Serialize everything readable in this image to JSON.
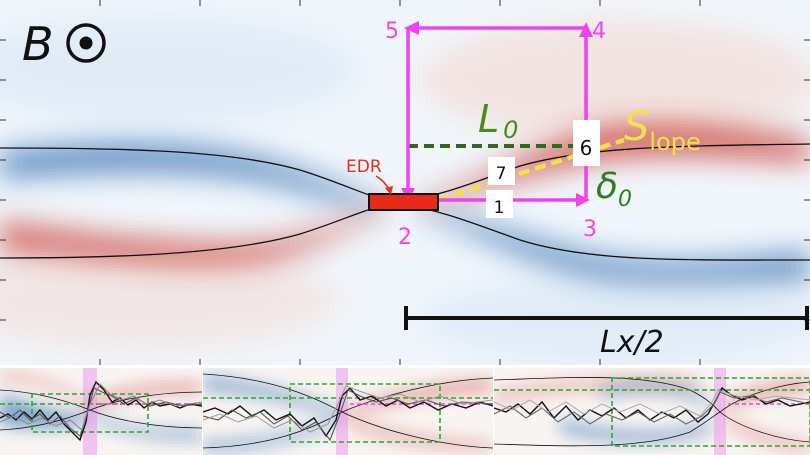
{
  "main_panel": {
    "field_label": "B",
    "edr_label": "EDR",
    "corner_labels": [
      "1",
      "2",
      "3",
      "4",
      "5",
      "6",
      "7"
    ],
    "l0_label_main": "L",
    "l0_label_sub": "0",
    "delta_label_main": "δ",
    "delta_label_sub": "0",
    "slope_label_main": "S",
    "slope_label_sub": "lope",
    "length_label": "Lx/2"
  },
  "colors": {
    "loop": "#ee44ee",
    "edr": "#e82a1a",
    "l0": "#2e7d1e",
    "slope": "#f5e04a",
    "positive": "#c8342a",
    "negative": "#2f6db0",
    "edr_text": "#e0301e"
  },
  "insets": [
    {
      "name": "inset-1"
    },
    {
      "name": "inset-2"
    },
    {
      "name": "inset-3"
    }
  ]
}
